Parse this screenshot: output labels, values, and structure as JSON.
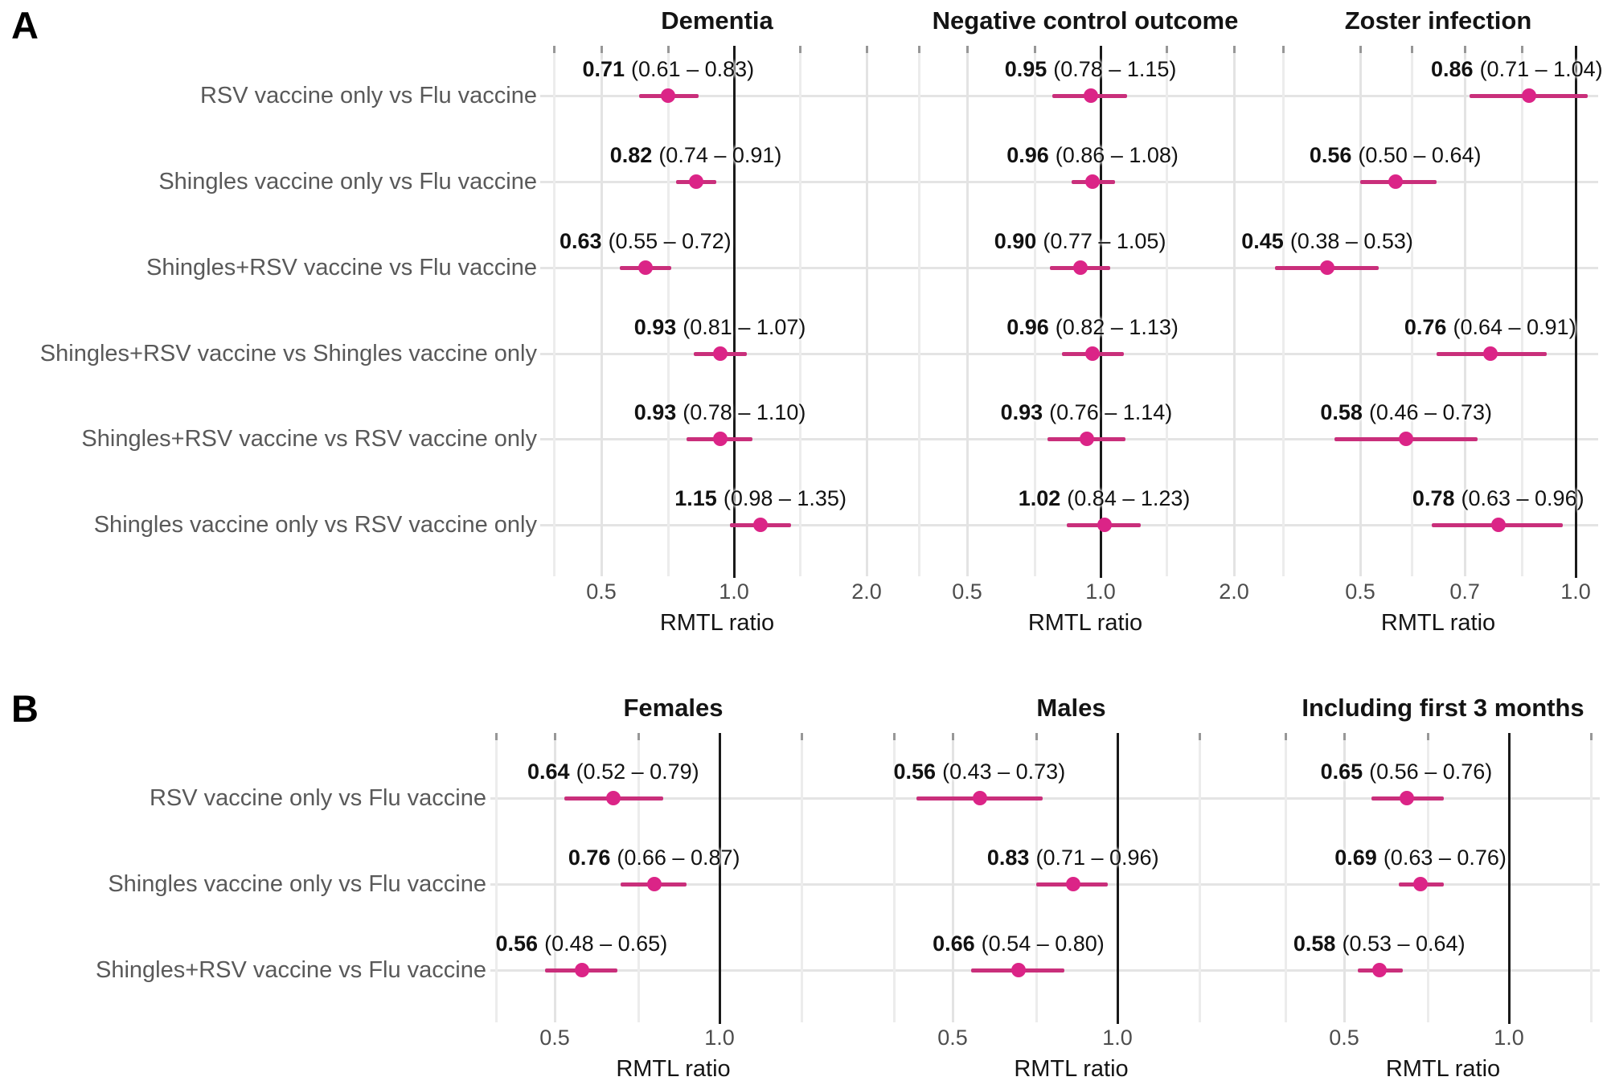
{
  "figure": {
    "panel_a_label": "A",
    "panel_b_label": "B",
    "colors": {
      "point": "#DB2487",
      "ci_line": "#C92F7B",
      "reference_line": "#1A1A1A",
      "grid": "#E7E7E7",
      "row_label_text": "#595959",
      "tick_label_text": "#4D4D4D",
      "title_text": "#141414",
      "background": "#FFFFFF"
    }
  },
  "chart_data": [
    {
      "panel": "A",
      "type": "scatter",
      "chart_style": "forest-plot",
      "title": "Dementia",
      "xlabel": "RMTL ratio",
      "x_scale": "log",
      "xlim": [
        0.36,
        2.31
      ],
      "reference_line": 1.0,
      "grid": true,
      "legend": "none",
      "ticks": [
        {
          "value": 0.5,
          "label": "0.5"
        },
        {
          "value": 1.0,
          "label": "1.0"
        },
        {
          "value": 2.0,
          "label": "2.0"
        }
      ],
      "minor_gridlines": [
        0.39,
        0.71,
        1.41
      ],
      "categories": [
        "RSV vaccine only vs Flu vaccine",
        "Shingles vaccine only vs Flu vaccine",
        "Shingles+RSV vaccine vs Flu vaccine",
        "Shingles+RSV vaccine vs Shingles vaccine only",
        "Shingles+RSV vaccine vs RSV vaccine only",
        "Shingles vaccine only vs RSV vaccine only"
      ],
      "points": [
        {
          "estimate": 0.71,
          "ci_low": 0.61,
          "ci_high": 0.83,
          "est_text": "0.71",
          "ci_text": "(0.61 – 0.83)"
        },
        {
          "estimate": 0.82,
          "ci_low": 0.74,
          "ci_high": 0.91,
          "est_text": "0.82",
          "ci_text": "(0.74 – 0.91)"
        },
        {
          "estimate": 0.63,
          "ci_low": 0.55,
          "ci_high": 0.72,
          "est_text": "0.63",
          "ci_text": "(0.55 – 0.72)"
        },
        {
          "estimate": 0.93,
          "ci_low": 0.81,
          "ci_high": 1.07,
          "est_text": "0.93",
          "ci_text": "(0.81 – 1.07)"
        },
        {
          "estimate": 0.93,
          "ci_low": 0.78,
          "ci_high": 1.1,
          "est_text": "0.93",
          "ci_text": "(0.78 – 1.10)"
        },
        {
          "estimate": 1.15,
          "ci_low": 0.98,
          "ci_high": 1.35,
          "est_text": "1.15",
          "ci_text": "(0.98 – 1.35)"
        }
      ]
    },
    {
      "panel": "A",
      "type": "scatter",
      "chart_style": "forest-plot",
      "title": "Negative control outcome",
      "xlabel": "RMTL ratio",
      "x_scale": "log",
      "xlim": [
        0.37,
        2.3
      ],
      "reference_line": 1.0,
      "grid": true,
      "legend": "none",
      "ticks": [
        {
          "value": 0.5,
          "label": "0.5"
        },
        {
          "value": 1.0,
          "label": "1.0"
        },
        {
          "value": 2.0,
          "label": "2.0"
        }
      ],
      "minor_gridlines": [
        0.39,
        0.71,
        1.41
      ],
      "categories": [
        "RSV vaccine only vs Flu vaccine",
        "Shingles vaccine only vs Flu vaccine",
        "Shingles+RSV vaccine vs Flu vaccine",
        "Shingles+RSV vaccine vs Shingles vaccine only",
        "Shingles+RSV vaccine vs RSV vaccine only",
        "Shingles vaccine only vs RSV vaccine only"
      ],
      "points": [
        {
          "estimate": 0.95,
          "ci_low": 0.78,
          "ci_high": 1.15,
          "est_text": "0.95",
          "ci_text": "(0.78 – 1.15)"
        },
        {
          "estimate": 0.96,
          "ci_low": 0.86,
          "ci_high": 1.08,
          "est_text": "0.96",
          "ci_text": "(0.86 – 1.08)"
        },
        {
          "estimate": 0.9,
          "ci_low": 0.77,
          "ci_high": 1.05,
          "est_text": "0.90",
          "ci_text": "(0.77 – 1.05)"
        },
        {
          "estimate": 0.96,
          "ci_low": 0.82,
          "ci_high": 1.13,
          "est_text": "0.96",
          "ci_text": "(0.82 – 1.13)"
        },
        {
          "estimate": 0.93,
          "ci_low": 0.76,
          "ci_high": 1.14,
          "est_text": "0.93",
          "ci_text": "(0.76 – 1.14)"
        },
        {
          "estimate": 1.02,
          "ci_low": 0.84,
          "ci_high": 1.23,
          "est_text": "1.02",
          "ci_text": "(0.84 – 1.23)"
        }
      ]
    },
    {
      "panel": "A",
      "type": "scatter",
      "chart_style": "forest-plot",
      "title": "Zoster infection",
      "xlabel": "RMTL ratio",
      "x_scale": "log",
      "xlim": [
        0.38,
        1.07
      ],
      "reference_line": 1.0,
      "grid": true,
      "legend": "none",
      "ticks": [
        {
          "value": 0.5,
          "label": "0.5"
        },
        {
          "value": 0.7,
          "label": "0.7"
        },
        {
          "value": 1.0,
          "label": "1.0"
        }
      ],
      "minor_gridlines": [
        0.39,
        0.59,
        0.84
      ],
      "categories": [
        "RSV vaccine only vs Flu vaccine",
        "Shingles vaccine only vs Flu vaccine",
        "Shingles+RSV vaccine vs Flu vaccine",
        "Shingles+RSV vaccine vs Shingles vaccine only",
        "Shingles+RSV vaccine vs RSV vaccine only",
        "Shingles vaccine only vs RSV vaccine only"
      ],
      "points": [
        {
          "estimate": 0.86,
          "ci_low": 0.71,
          "ci_high": 1.04,
          "est_text": "0.86",
          "ci_text": "(0.71 – 1.04)"
        },
        {
          "estimate": 0.56,
          "ci_low": 0.5,
          "ci_high": 0.64,
          "est_text": "0.56",
          "ci_text": "(0.50 – 0.64)"
        },
        {
          "estimate": 0.45,
          "ci_low": 0.38,
          "ci_high": 0.53,
          "est_text": "0.45",
          "ci_text": "(0.38 – 0.53)"
        },
        {
          "estimate": 0.76,
          "ci_low": 0.64,
          "ci_high": 0.91,
          "est_text": "0.76",
          "ci_text": "(0.64 – 0.91)"
        },
        {
          "estimate": 0.58,
          "ci_low": 0.46,
          "ci_high": 0.73,
          "est_text": "0.58",
          "ci_text": "(0.46 – 0.73)"
        },
        {
          "estimate": 0.78,
          "ci_low": 0.63,
          "ci_high": 0.96,
          "est_text": "0.78",
          "ci_text": "(0.63 – 0.96)"
        }
      ]
    },
    {
      "panel": "B",
      "type": "scatter",
      "chart_style": "forest-plot",
      "title": "Females",
      "xlabel": "RMTL ratio",
      "x_scale": "log",
      "xlim": [
        0.39,
        1.75
      ],
      "reference_line": 1.0,
      "grid": true,
      "legend": "none",
      "ticks": [
        {
          "value": 0.5,
          "label": "0.5"
        },
        {
          "value": 1.0,
          "label": "1.0"
        }
      ],
      "minor_gridlines": [
        0.39,
        0.71,
        1.41
      ],
      "categories": [
        "RSV vaccine only vs Flu vaccine",
        "Shingles vaccine only vs Flu vaccine",
        "Shingles+RSV vaccine vs Flu vaccine"
      ],
      "points": [
        {
          "estimate": 0.64,
          "ci_low": 0.52,
          "ci_high": 0.79,
          "est_text": "0.64",
          "ci_text": "(0.52 – 0.79)"
        },
        {
          "estimate": 0.76,
          "ci_low": 0.66,
          "ci_high": 0.87,
          "est_text": "0.76",
          "ci_text": "(0.66 – 0.87)"
        },
        {
          "estimate": 0.56,
          "ci_low": 0.48,
          "ci_high": 0.65,
          "est_text": "0.56",
          "ci_text": "(0.48 – 0.65)"
        }
      ]
    },
    {
      "panel": "B",
      "type": "scatter",
      "chart_style": "forest-plot",
      "title": "Males",
      "xlabel": "RMTL ratio",
      "x_scale": "log",
      "xlim": [
        0.39,
        1.75
      ],
      "reference_line": 1.0,
      "grid": true,
      "legend": "none",
      "ticks": [
        {
          "value": 0.5,
          "label": "0.5"
        },
        {
          "value": 1.0,
          "label": "1.0"
        }
      ],
      "minor_gridlines": [
        0.39,
        0.71,
        1.41
      ],
      "categories": [
        "RSV vaccine only vs Flu vaccine",
        "Shingles vaccine only vs Flu vaccine",
        "Shingles+RSV vaccine vs Flu vaccine"
      ],
      "points": [
        {
          "estimate": 0.56,
          "ci_low": 0.43,
          "ci_high": 0.73,
          "est_text": "0.56",
          "ci_text": "(0.43 – 0.73)"
        },
        {
          "estimate": 0.83,
          "ci_low": 0.71,
          "ci_high": 0.96,
          "est_text": "0.83",
          "ci_text": "(0.71 – 0.96)"
        },
        {
          "estimate": 0.66,
          "ci_low": 0.54,
          "ci_high": 0.8,
          "est_text": "0.66",
          "ci_text": "(0.54 – 0.80)"
        }
      ]
    },
    {
      "panel": "B",
      "type": "scatter",
      "chart_style": "forest-plot",
      "title": "Including first 3 months",
      "xlabel": "RMTL ratio",
      "x_scale": "log",
      "xlim": [
        0.39,
        1.47
      ],
      "reference_line": 1.0,
      "grid": true,
      "legend": "none",
      "ticks": [
        {
          "value": 0.5,
          "label": "0.5"
        },
        {
          "value": 1.0,
          "label": "1.0"
        }
      ],
      "minor_gridlines": [
        0.39,
        0.71,
        1.41
      ],
      "categories": [
        "RSV vaccine only vs Flu vaccine",
        "Shingles vaccine only vs Flu vaccine",
        "Shingles+RSV vaccine vs Flu vaccine"
      ],
      "points": [
        {
          "estimate": 0.65,
          "ci_low": 0.56,
          "ci_high": 0.76,
          "est_text": "0.65",
          "ci_text": "(0.56 – 0.76)"
        },
        {
          "estimate": 0.69,
          "ci_low": 0.63,
          "ci_high": 0.76,
          "est_text": "0.69",
          "ci_text": "(0.63 – 0.76)"
        },
        {
          "estimate": 0.58,
          "ci_low": 0.53,
          "ci_high": 0.64,
          "est_text": "0.58",
          "ci_text": "(0.53 – 0.64)"
        }
      ]
    }
  ]
}
